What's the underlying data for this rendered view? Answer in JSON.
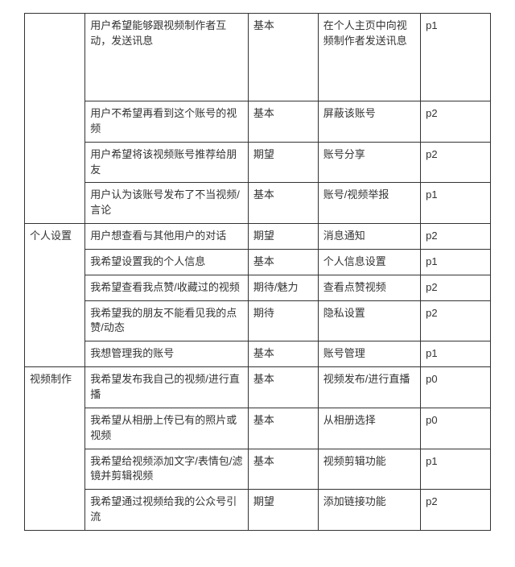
{
  "table": {
    "border_color": "#333333",
    "background_color": "#ffffff",
    "text_color": "#333333",
    "font_size_pt": 10,
    "columns": [
      {
        "key": "category",
        "width_pct": 13
      },
      {
        "key": "user_story",
        "width_pct": 35
      },
      {
        "key": "type",
        "width_pct": 15
      },
      {
        "key": "feature",
        "width_pct": 22
      },
      {
        "key": "priority",
        "width_pct": 15
      }
    ],
    "groups": [
      {
        "category": "",
        "rows": [
          {
            "user_story": "用户希望能够跟视频制作者互动，发送讯息",
            "type": "基本",
            "feature": "在个人主页中向视频制作者发送讯息",
            "priority": "p1",
            "tall": true
          },
          {
            "user_story": "用户不希望再看到这个账号的视频",
            "type": "基本",
            "feature": "屏蔽该账号",
            "priority": "p2"
          },
          {
            "user_story": "用户希望将该视频账号推荐给朋友",
            "type": "期望",
            "feature": "账号分享",
            "priority": "p2"
          },
          {
            "user_story": "用户认为该账号发布了不当视频/言论",
            "type": "基本",
            "feature": "账号/视频举报",
            "priority": "p1"
          }
        ]
      },
      {
        "category": "个人设置",
        "rows": [
          {
            "user_story": "用户想查看与其他用户的对话",
            "type": "期望",
            "feature": "消息通知",
            "priority": "p2"
          },
          {
            "user_story": "我希望设置我的个人信息",
            "type": "基本",
            "feature": "个人信息设置",
            "priority": "p1"
          },
          {
            "user_story": "我希望查看我点赞/收藏过的视频",
            "type": "期待/魅力",
            "feature": "查看点赞视频",
            "priority": "p2"
          },
          {
            "user_story": "我希望我的朋友不能看见我的点赞/动态",
            "type": "期待",
            "feature": "隐私设置",
            "priority": "p2"
          },
          {
            "user_story": "我想管理我的账号",
            "type": "基本",
            "feature": "账号管理",
            "priority": "p1"
          }
        ]
      },
      {
        "category": "视频制作",
        "rows": [
          {
            "user_story": "我希望发布我自己的视频/进行直播",
            "type": "基本",
            "feature": "视频发布/进行直播",
            "priority": "p0"
          },
          {
            "user_story": "我希望从相册上传已有的照片或视频",
            "type": "基本",
            "feature": "从相册选择",
            "priority": "p0"
          },
          {
            "user_story": "我希望给视频添加文字/表情包/滤镜并剪辑视频",
            "type": "基本",
            "feature": "视频剪辑功能",
            "priority": "p1"
          },
          {
            "user_story": "我希望通过视频给我的公众号引流",
            "type": "期望",
            "feature": "添加链接功能",
            "priority": "p2"
          }
        ]
      }
    ]
  }
}
